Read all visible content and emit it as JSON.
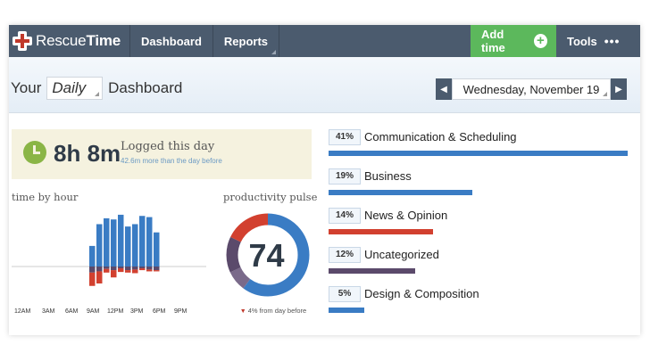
{
  "brand": {
    "part1": "Rescue",
    "part2": "Time"
  },
  "nav": {
    "dashboard": "Dashboard",
    "reports": "Reports",
    "add_time": "Add time",
    "add_icon": "+",
    "tools": "Tools",
    "tools_dots": "•••"
  },
  "header": {
    "your": "Your",
    "period": "Daily",
    "dashboard": "Dashboard",
    "date": "Wednesday, November 19",
    "prev_icon": "◀",
    "next_icon": "▶"
  },
  "logged": {
    "time": "8h 8m",
    "label": "Logged this day",
    "sub": "42.6m more than the day before"
  },
  "time_by_hour": {
    "title": "time by hour",
    "x_labels": [
      "12AM",
      "3AM",
      "6AM",
      "9AM",
      "12PM",
      "3PM",
      "6PM",
      "9PM"
    ]
  },
  "pulse": {
    "title": "productivity pulse",
    "value": "74",
    "sub_arrow": "▼",
    "sub": "4% from day before"
  },
  "colors": {
    "blue": "#3a7cc4",
    "red": "#d2402f",
    "purple": "#5b4a6b",
    "green": "#5cb85c",
    "nav": "#4b5b6e"
  },
  "categories": [
    {
      "pct": "41%",
      "name": "Communication & Scheduling",
      "fraction": 1.0,
      "color": "#3a7cc4"
    },
    {
      "pct": "19%",
      "name": "Business",
      "fraction": 0.48,
      "color": "#3a7cc4"
    },
    {
      "pct": "14%",
      "name": "News & Opinion",
      "fraction": 0.35,
      "color": "#d2402f"
    },
    {
      "pct": "12%",
      "name": "Uncategorized",
      "fraction": 0.29,
      "color": "#5b4a6b"
    },
    {
      "pct": "5%",
      "name": "Design & Composition",
      "fraction": 0.12,
      "color": "#3a7cc4"
    }
  ],
  "chart_data": {
    "type": "bar",
    "categories": [
      "8",
      "9",
      "10",
      "11",
      "12",
      "13",
      "14",
      "15",
      "16",
      "17"
    ],
    "series": [
      {
        "values": [
          0.35,
          0.72,
          0.82,
          0.8,
          0.88,
          0.68,
          0.72,
          0.86,
          0.84,
          0.58
        ],
        "color": "#3a7cc4"
      },
      {
        "values": [
          -0.1,
          -0.08,
          -0.04,
          -0.06,
          -0.03,
          -0.06,
          -0.05,
          -0.03,
          -0.05,
          -0.06
        ],
        "color": "#5b4a6b"
      },
      {
        "values": [
          -0.22,
          -0.2,
          -0.06,
          -0.12,
          -0.06,
          -0.04,
          -0.06,
          -0.03,
          -0.03,
          -0.02
        ],
        "color": "#d2402f"
      }
    ],
    "pulse_segments": [
      {
        "value": 0.6,
        "color": "#3a7cc4"
      },
      {
        "value": 0.08,
        "color": "#7a6a8a"
      },
      {
        "value": 0.14,
        "color": "#5b4a6b"
      },
      {
        "value": 0.18,
        "color": "#d2402f"
      }
    ]
  }
}
